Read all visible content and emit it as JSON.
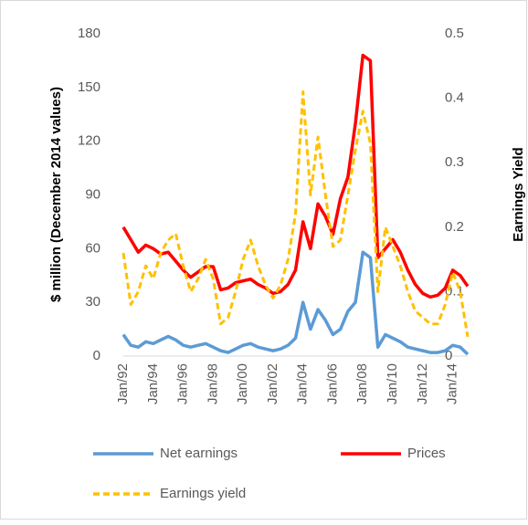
{
  "chart_data": {
    "type": "line",
    "y_label": "$ million (December 2014 values)",
    "y2_label": "Earnings Yield",
    "categories": [
      "Jan/92",
      null,
      null,
      null,
      "Jan/94",
      null,
      null,
      null,
      "Jan/96",
      null,
      null,
      null,
      "Jan/98",
      null,
      null,
      null,
      "Jan/00",
      null,
      null,
      null,
      "Jan/02",
      null,
      null,
      null,
      "Jan/04",
      null,
      null,
      null,
      "Jan/06",
      null,
      null,
      null,
      "Jan/08",
      null,
      null,
      null,
      "Jan/10",
      null,
      null,
      null,
      "Jan/12",
      null,
      null,
      null,
      "Jan/14",
      null,
      null
    ],
    "ylim": [
      0,
      180
    ],
    "yticks": [
      0,
      30,
      60,
      90,
      120,
      150,
      180
    ],
    "y2lim": [
      0,
      0.5
    ],
    "y2ticks": [
      0,
      0.1,
      0.2,
      0.3,
      0.4,
      0.5
    ],
    "grid": false,
    "series": [
      {
        "name": "Net earnings",
        "color": "#5b9bd5",
        "style": "solid",
        "values": [
          12,
          6,
          5,
          8,
          7,
          9,
          11,
          9,
          6,
          5,
          6,
          7,
          5,
          3,
          2,
          4,
          6,
          7,
          5,
          4,
          3,
          4,
          6,
          10,
          30,
          15,
          26,
          20,
          12,
          15,
          25,
          30,
          58,
          55,
          5,
          12,
          10,
          8,
          5,
          4,
          3,
          2,
          2,
          3,
          6,
          5,
          1
        ]
      },
      {
        "name": "Prices",
        "color": "#ff0000",
        "style": "solid",
        "values": [
          72,
          65,
          58,
          62,
          60,
          57,
          58,
          53,
          48,
          44,
          47,
          50,
          50,
          37,
          38,
          41,
          42,
          43,
          40,
          38,
          35,
          36,
          40,
          48,
          75,
          60,
          85,
          78,
          68,
          88,
          100,
          130,
          168,
          165,
          55,
          60,
          65,
          58,
          48,
          40,
          35,
          33,
          34,
          38,
          48,
          45,
          39
        ]
      },
      {
        "name": "Earnings yield",
        "color": "#ffc000",
        "style": "dashed",
        "axis": "y2",
        "values": [
          0.16,
          0.08,
          0.1,
          0.14,
          0.12,
          0.16,
          0.18,
          0.19,
          0.14,
          0.1,
          0.12,
          0.15,
          0.12,
          0.05,
          0.06,
          0.1,
          0.15,
          0.18,
          0.14,
          0.11,
          0.09,
          0.11,
          0.15,
          0.22,
          0.41,
          0.25,
          0.34,
          0.25,
          0.17,
          0.18,
          0.25,
          0.32,
          0.38,
          0.33,
          0.1,
          0.2,
          0.17,
          0.14,
          0.1,
          0.07,
          0.06,
          0.05,
          0.05,
          0.08,
          0.13,
          0.1,
          0.03
        ]
      }
    ]
  }
}
